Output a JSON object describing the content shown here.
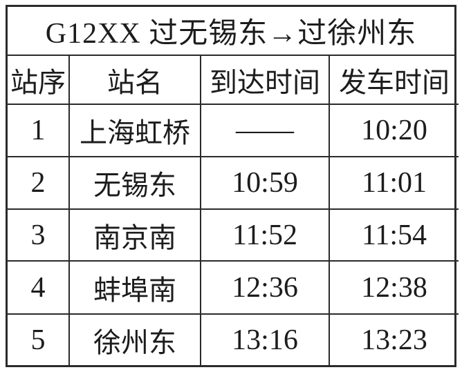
{
  "title": "G12XX 过无锡东→过徐州东",
  "table": {
    "headers": [
      "站序",
      "站名",
      "到达时间",
      "发车时间"
    ],
    "rows": [
      {
        "seq": "1",
        "station": "上海虹桥",
        "arrival": "——",
        "departure": "10:20"
      },
      {
        "seq": "2",
        "station": "无锡东",
        "arrival": "10:59",
        "departure": "11:01"
      },
      {
        "seq": "3",
        "station": "南京南",
        "arrival": "11:52",
        "departure": "11:54"
      },
      {
        "seq": "4",
        "station": "蚌埠南",
        "arrival": "12:36",
        "departure": "12:38"
      },
      {
        "seq": "5",
        "station": "徐州东",
        "arrival": "13:16",
        "departure": "13:23"
      }
    ]
  },
  "colors": {
    "border": "#2a2a2a",
    "text": "#1c1c1c",
    "background": "#ffffff"
  }
}
